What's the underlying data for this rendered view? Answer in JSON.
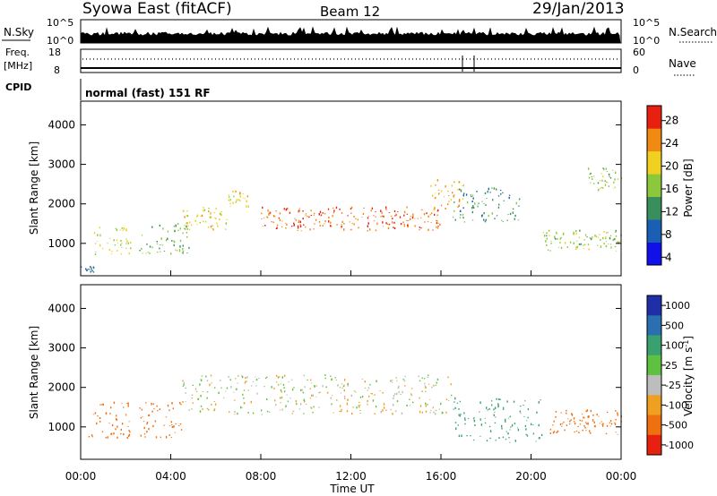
{
  "header": {
    "station": "Syowa East (fitACF)",
    "beam": "Beam 12",
    "date": "29/Jan/2013"
  },
  "noise_panel": {
    "left_label": "N.Sky",
    "right_label": "N.Search",
    "scale_top": "10^5",
    "scale_bottom": "10^0",
    "right_scale_top": "10^5",
    "right_scale_bottom": "10^0"
  },
  "freq_panel": {
    "left_label_1": "Freq.",
    "left_label_2": "[MHz]",
    "left_top": "18",
    "left_bottom": "8",
    "right_label": "Nave",
    "right_top": "60",
    "right_bottom": "0"
  },
  "cpid": {
    "label": "CPID",
    "value": "normal (fast) 151 RF"
  },
  "axes": {
    "ylabel": "Slant Range [km]",
    "xlabel": "Time UT",
    "x_ticks": [
      "00:00",
      "04:00",
      "08:00",
      "12:00",
      "16:00",
      "20:00",
      "00:00"
    ],
    "y_ticks": [
      "1000",
      "2000",
      "3000",
      "4000"
    ]
  },
  "power_scale": {
    "label": "Power [dB]",
    "ticks": [
      "4",
      "8",
      "12",
      "16",
      "20",
      "24",
      "28"
    ],
    "colors": [
      "#1010e8",
      "#1a5fb4",
      "#3a8e5c",
      "#8cc83c",
      "#f0d020",
      "#f08a10",
      "#e82010"
    ]
  },
  "velocity_scale": {
    "label": "Velocity [m s^-1]",
    "ticks": [
      "1000",
      "500",
      "100",
      "25",
      "-25",
      "-100",
      "-500",
      "-1000"
    ],
    "colors": [
      "#1f2fa8",
      "#2a6fb0",
      "#3aa070",
      "#60c040",
      "#bdbdbd",
      "#f0a020",
      "#f07010",
      "#e82010"
    ]
  },
  "chart_data": [
    {
      "type": "heatmap",
      "title": "Power",
      "xlabel": "Time UT",
      "ylabel": "Slant Range [km]",
      "xlim": [
        0,
        24
      ],
      "ylim": [
        180,
        4600
      ],
      "colorbar": {
        "label": "Power [dB]",
        "ticks": [
          4,
          8,
          12,
          16,
          20,
          24,
          28
        ]
      },
      "features": [
        {
          "t0": 0.0,
          "t1": 0.6,
          "r0": 250,
          "r1": 400,
          "value": 10
        },
        {
          "t0": 0.5,
          "t1": 2.2,
          "r0": 700,
          "r1": 1400,
          "value": 18
        },
        {
          "t0": 2.6,
          "t1": 4.8,
          "r0": 700,
          "r1": 1500,
          "value": 14
        },
        {
          "t0": 4.5,
          "t1": 6.5,
          "r0": 1300,
          "r1": 1900,
          "value": 20
        },
        {
          "t0": 6.5,
          "t1": 7.5,
          "r0": 1900,
          "r1": 2300,
          "value": 20
        },
        {
          "t0": 8.0,
          "t1": 16.0,
          "r0": 1300,
          "r1": 1900,
          "value": 25
        },
        {
          "t0": 15.5,
          "t1": 17.0,
          "r0": 1800,
          "r1": 2600,
          "value": 22
        },
        {
          "t0": 16.5,
          "t1": 19.5,
          "r0": 1500,
          "r1": 2400,
          "value": 12
        },
        {
          "t0": 20.5,
          "t1": 24.0,
          "r0": 800,
          "r1": 1300,
          "value": 16
        },
        {
          "t0": 22.5,
          "t1": 24.0,
          "r0": 2300,
          "r1": 2900,
          "value": 16
        }
      ]
    },
    {
      "type": "heatmap",
      "title": "Velocity",
      "xlabel": "Time UT",
      "ylabel": "Slant Range [km]",
      "xlim": [
        0,
        24
      ],
      "ylim": [
        180,
        4600
      ],
      "colorbar": {
        "label": "Velocity [m s^-1]",
        "ticks": [
          1000,
          500,
          100,
          25,
          -25,
          -100,
          -500,
          -1000
        ]
      },
      "features": [
        {
          "t0": 0.3,
          "t1": 2.2,
          "r0": 700,
          "r1": 1600,
          "value": -300
        },
        {
          "t0": 2.6,
          "t1": 4.5,
          "r0": 700,
          "r1": 1600,
          "value": -300
        },
        {
          "t0": 4.5,
          "t1": 16.5,
          "r0": 1300,
          "r1": 2300,
          "value": 0
        },
        {
          "t0": 16.5,
          "t1": 20.5,
          "r0": 600,
          "r1": 1700,
          "value": 300
        },
        {
          "t0": 20.8,
          "t1": 24.0,
          "r0": 800,
          "r1": 1400,
          "value": -400
        }
      ]
    }
  ]
}
